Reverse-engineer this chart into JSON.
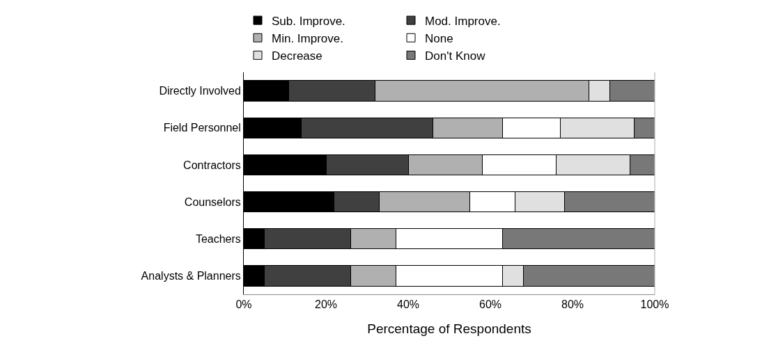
{
  "chart_data": {
    "type": "bar",
    "orientation": "horizontal",
    "stacked": true,
    "xlabel": "Percentage of Respondents",
    "categories": [
      "Directly Involved",
      "Field Personnel",
      "Contractors",
      "Counselors",
      "Teachers",
      "Analysts & Planners"
    ],
    "series": [
      {
        "name": "Sub. Improve.",
        "color": "#000000",
        "values": [
          11,
          14,
          20,
          22,
          5,
          5
        ]
      },
      {
        "name": "Mod. Improve.",
        "color": "#404040",
        "values": [
          21,
          32,
          20,
          11,
          21,
          21
        ]
      },
      {
        "name": "Min. Improve.",
        "color": "#b0b0b0",
        "values": [
          52,
          17,
          18,
          22,
          11,
          11
        ]
      },
      {
        "name": "None",
        "color": "#ffffff",
        "values": [
          0,
          14,
          18,
          11,
          26,
          26
        ]
      },
      {
        "name": "Decrease",
        "color": "#e0e0e0",
        "values": [
          5,
          18,
          18,
          12,
          0,
          5
        ]
      },
      {
        "name": "Don't Know",
        "color": "#787878",
        "values": [
          11,
          5,
          6,
          22,
          37,
          32
        ]
      }
    ],
    "xlim": [
      0,
      100
    ],
    "xticks": [
      {
        "value": 0,
        "label": "0%"
      },
      {
        "value": 20,
        "label": "20%"
      },
      {
        "value": 40,
        "label": "40%"
      },
      {
        "value": 60,
        "label": "60%"
      },
      {
        "value": 80,
        "label": "80%"
      },
      {
        "value": 100,
        "label": "100%"
      }
    ],
    "grid": false,
    "legend": "top"
  }
}
